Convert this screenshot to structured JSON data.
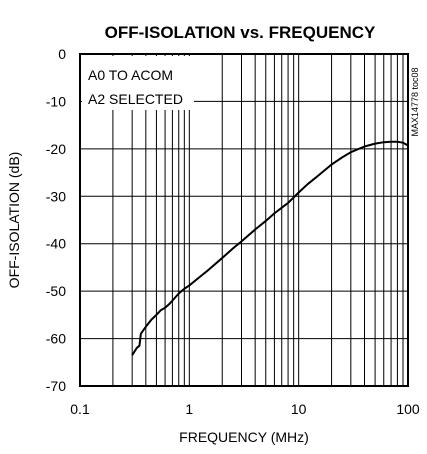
{
  "chart_data": {
    "type": "line",
    "title": "OFF-ISOLATION vs. FREQUENCY",
    "xlabel": "FREQUENCY (MHz)",
    "ylabel": "OFF-ISOLATION (dB)",
    "xscale": "log",
    "xlim": [
      0.1,
      100
    ],
    "ylim": [
      -70,
      0
    ],
    "x_ticks": [
      0.1,
      1,
      10,
      100
    ],
    "x_tick_labels": [
      "0.1",
      "1",
      "10",
      "100"
    ],
    "y_ticks": [
      0,
      -10,
      -20,
      -30,
      -40,
      -50,
      -60,
      -70
    ],
    "y_tick_labels": [
      "0",
      "-10",
      "-20",
      "-30",
      "-40",
      "-50",
      "-60",
      "-70"
    ],
    "grid": true,
    "annotation_lines": [
      "A0 TO ACOM",
      "A2 SELECTED"
    ],
    "side_label": "MAX14778 toc08",
    "series": [
      {
        "x": [
          0.3,
          0.33,
          0.35,
          0.36,
          0.4,
          0.45,
          0.5,
          0.55,
          0.6,
          0.65,
          0.7,
          0.8,
          0.9,
          1,
          1.2,
          1.5,
          2,
          2.5,
          3,
          4,
          5,
          6,
          7,
          8,
          10,
          12,
          15,
          20,
          25,
          30,
          40,
          50,
          60,
          70,
          80,
          90,
          100
        ],
        "y": [
          -63.5,
          -62,
          -61.5,
          -59,
          -57.5,
          -56,
          -55,
          -54,
          -53.5,
          -52.8,
          -52,
          -50.5,
          -49.5,
          -48.8,
          -47.3,
          -45.5,
          -43,
          -41,
          -39.5,
          -37,
          -35.2,
          -33.6,
          -32.4,
          -31.4,
          -29.2,
          -27.5,
          -25.7,
          -23.3,
          -21.8,
          -20.7,
          -19.5,
          -18.9,
          -18.6,
          -18.5,
          -18.5,
          -18.7,
          -19.3
        ]
      }
    ]
  }
}
